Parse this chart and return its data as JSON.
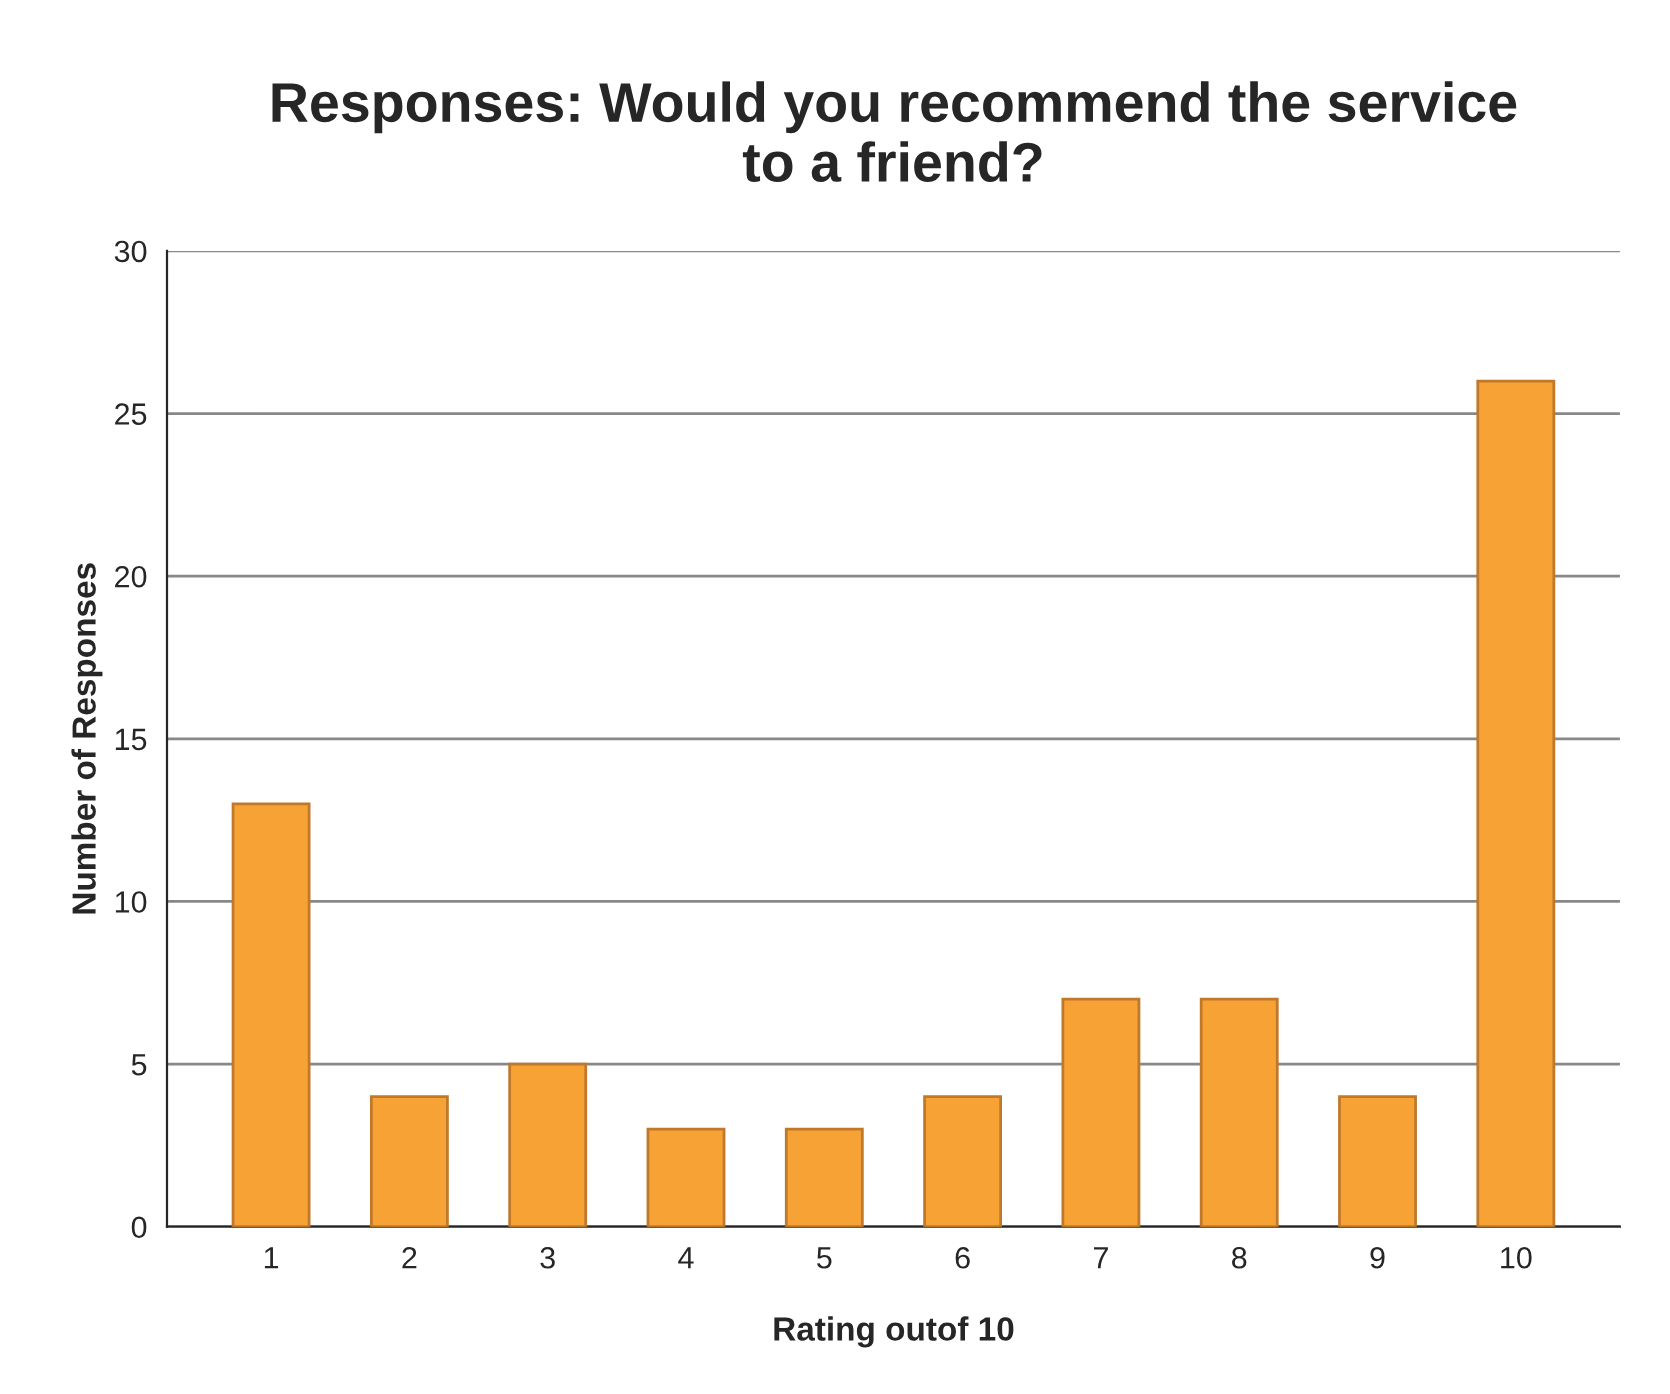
{
  "chart_data": {
    "type": "bar",
    "title": "Responses: Would you recommend the service\nto a friend?",
    "xlabel": "Rating outof 10",
    "ylabel": "Number of Responses",
    "categories": [
      "1",
      "2",
      "3",
      "4",
      "5",
      "6",
      "7",
      "8",
      "9",
      "10"
    ],
    "values": [
      13,
      4,
      5,
      3,
      3,
      4,
      7,
      7,
      4,
      26
    ],
    "color": "#f7a235",
    "ylim": [
      0,
      30
    ],
    "yticks": [
      0,
      5,
      10,
      15,
      20,
      25,
      30
    ],
    "grid": "y"
  }
}
